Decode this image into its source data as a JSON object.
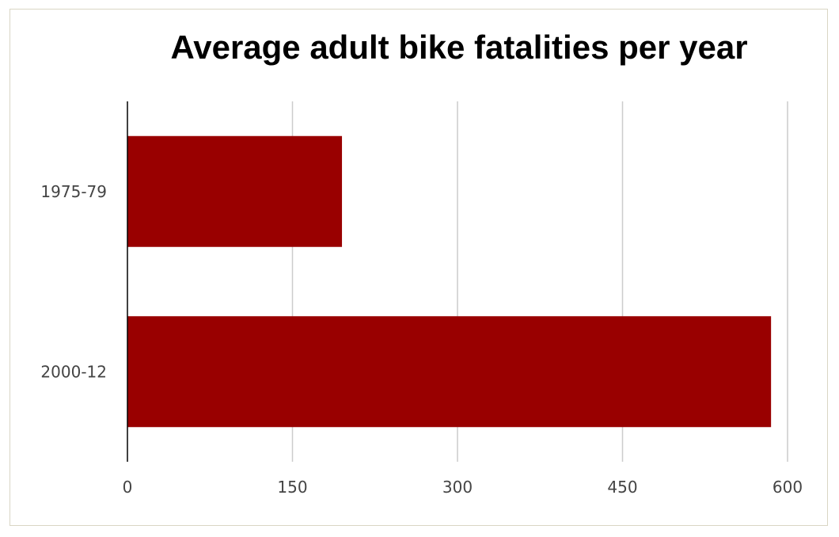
{
  "chart_data": {
    "type": "bar",
    "orientation": "horizontal",
    "title": "Average adult bike fatalities per year",
    "xlabel": "",
    "ylabel": "",
    "categories": [
      "1975-79",
      "2000-12"
    ],
    "values": [
      195,
      585
    ],
    "xlim": [
      0,
      600
    ],
    "xticks": [
      "0",
      "150",
      "300",
      "450",
      "600"
    ],
    "grid": true,
    "legend": "none",
    "colors": {
      "bar": "#990000",
      "grid": "#cccccc",
      "axis": "#000000"
    }
  }
}
